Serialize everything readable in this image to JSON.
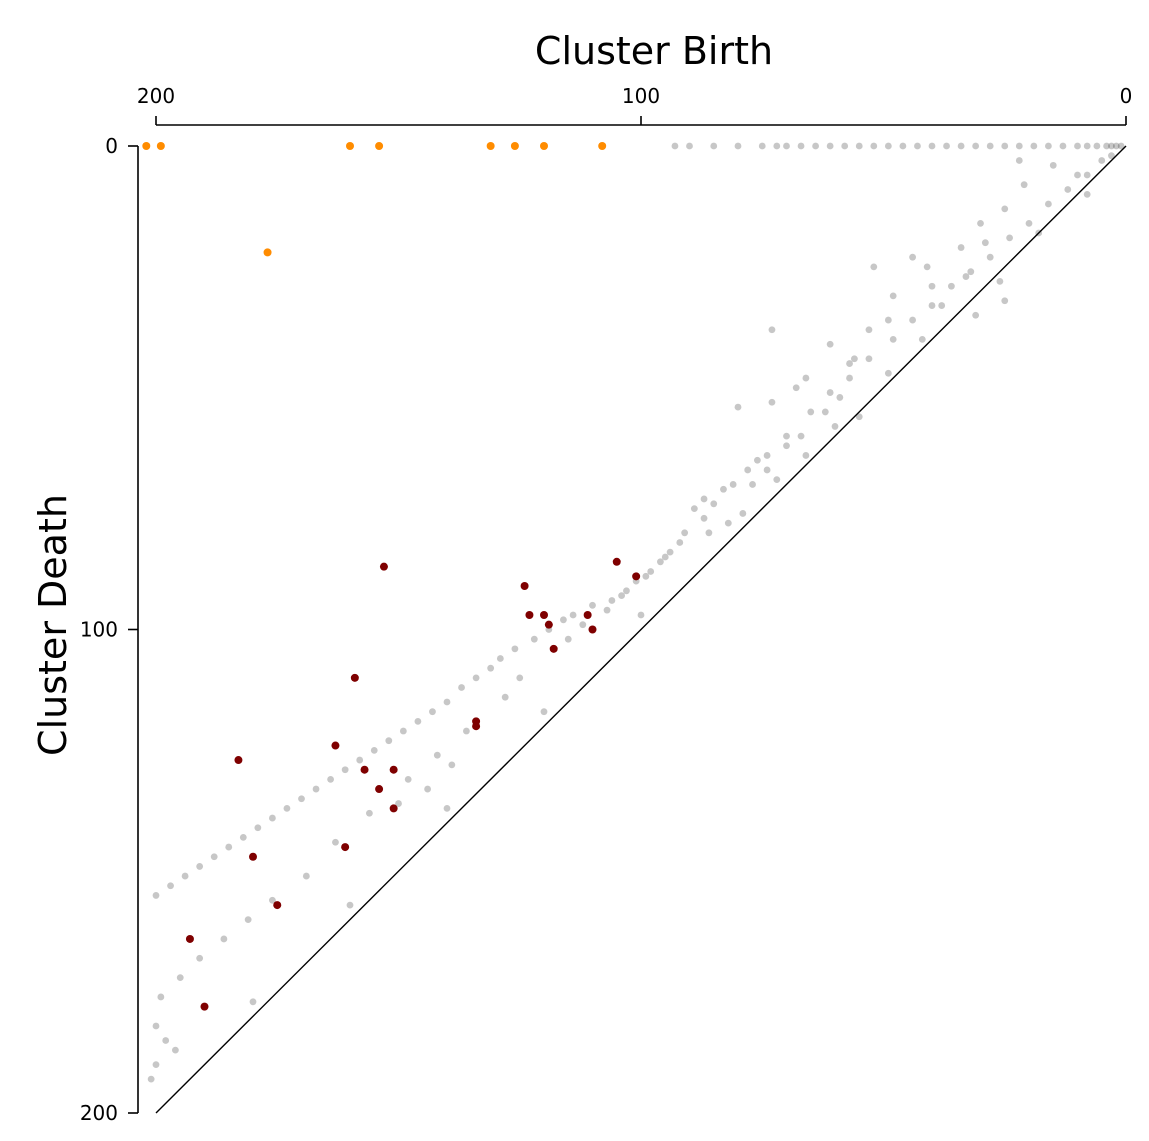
{
  "chart_data": {
    "type": "scatter",
    "title": "",
    "xlabel": "Cluster Birth",
    "ylabel": "Cluster Death",
    "x_axis_position": "top",
    "x_reversed": true,
    "y_reversed": true,
    "xlim": [
      0,
      200
    ],
    "ylim": [
      0,
      200
    ],
    "xticks": [
      "200",
      "100",
      "0"
    ],
    "yticks": [
      "0",
      "100",
      "200"
    ],
    "grid": false,
    "legend": "none",
    "colors": {
      "infinite": "#ff8c00",
      "significant": "#7f0000",
      "noise": "#000000"
    },
    "series": [
      {
        "kind": "infinite",
        "points": [
          [
            202,
            0
          ],
          [
            199,
            0
          ],
          [
            160,
            0
          ],
          [
            154,
            0
          ],
          [
            131,
            0
          ],
          [
            126,
            0
          ],
          [
            120,
            0
          ],
          [
            108,
            0
          ],
          [
            177,
            22
          ]
        ]
      },
      {
        "kind": "significant",
        "points": [
          [
            105,
            86
          ],
          [
            101,
            89
          ],
          [
            124,
            91
          ],
          [
            153,
            87
          ],
          [
            123,
            97
          ],
          [
            120,
            97
          ],
          [
            119,
            99
          ],
          [
            111,
            97
          ],
          [
            110,
            100
          ],
          [
            118,
            104
          ],
          [
            159,
            110
          ],
          [
            134,
            119
          ],
          [
            134,
            120
          ],
          [
            163,
            124
          ],
          [
            183,
            127
          ],
          [
            157,
            129
          ],
          [
            151,
            129
          ],
          [
            154,
            133
          ],
          [
            151,
            137
          ],
          [
            161,
            145
          ],
          [
            180,
            147
          ],
          [
            175,
            157
          ],
          [
            193,
            164
          ],
          [
            190,
            178
          ]
        ]
      }
    ],
    "noise_points": [
      [
        93,
        0
      ],
      [
        90,
        0
      ],
      [
        85,
        0
      ],
      [
        80,
        0
      ],
      [
        75,
        0
      ],
      [
        72,
        0
      ],
      [
        70,
        0
      ],
      [
        67,
        0
      ],
      [
        64,
        0
      ],
      [
        61,
        0
      ],
      [
        58,
        0
      ],
      [
        55,
        0
      ],
      [
        52,
        0
      ],
      [
        49,
        0
      ],
      [
        46,
        0
      ],
      [
        43,
        0
      ],
      [
        40,
        0
      ],
      [
        37,
        0
      ],
      [
        34,
        0
      ],
      [
        31,
        0
      ],
      [
        28,
        0
      ],
      [
        25,
        0
      ],
      [
        22,
        0
      ],
      [
        19,
        0
      ],
      [
        16,
        0
      ],
      [
        13,
        0
      ],
      [
        10,
        0
      ],
      [
        8,
        0
      ],
      [
        6,
        0
      ],
      [
        4,
        0
      ],
      [
        3,
        0
      ],
      [
        2,
        0
      ],
      [
        1,
        0
      ],
      [
        22,
        3
      ],
      [
        15,
        4
      ],
      [
        10,
        6
      ],
      [
        21,
        8
      ],
      [
        8,
        10
      ],
      [
        25,
        13
      ],
      [
        30,
        16
      ],
      [
        18,
        18
      ],
      [
        29,
        20
      ],
      [
        34,
        21
      ],
      [
        44,
        23
      ],
      [
        52,
        25
      ],
      [
        41,
        25
      ],
      [
        33,
        27
      ],
      [
        26,
        28
      ],
      [
        40,
        29
      ],
      [
        48,
        31
      ],
      [
        25,
        32
      ],
      [
        38,
        33
      ],
      [
        31,
        35
      ],
      [
        49,
        36
      ],
      [
        53,
        38
      ],
      [
        73,
        38
      ],
      [
        42,
        40
      ],
      [
        61,
        41
      ],
      [
        56,
        44
      ],
      [
        57,
        45
      ],
      [
        49,
        47
      ],
      [
        66,
        48
      ],
      [
        68,
        50
      ],
      [
        59,
        52
      ],
      [
        73,
        53
      ],
      [
        80,
        54
      ],
      [
        62,
        55
      ],
      [
        55,
        56
      ],
      [
        60,
        58
      ],
      [
        67,
        60
      ],
      [
        70,
        62
      ],
      [
        66,
        64
      ],
      [
        76,
        65
      ],
      [
        74,
        67
      ],
      [
        72,
        69
      ],
      [
        77,
        70
      ],
      [
        83,
        71
      ],
      [
        87,
        73
      ],
      [
        89,
        75
      ],
      [
        87,
        77
      ],
      [
        79,
        76
      ],
      [
        86,
        80
      ],
      [
        82,
        78
      ],
      [
        92,
        82
      ],
      [
        94,
        84
      ],
      [
        96,
        86
      ],
      [
        98,
        88
      ],
      [
        101,
        90
      ],
      [
        103,
        92
      ],
      [
        106,
        94
      ],
      [
        110,
        95
      ],
      [
        114,
        97
      ],
      [
        116,
        98
      ],
      [
        119,
        100
      ],
      [
        122,
        102
      ],
      [
        126,
        104
      ],
      [
        129,
        106
      ],
      [
        131,
        108
      ],
      [
        134,
        110
      ],
      [
        137,
        112
      ],
      [
        140,
        115
      ],
      [
        143,
        117
      ],
      [
        146,
        119
      ],
      [
        149,
        121
      ],
      [
        152,
        123
      ],
      [
        155,
        125
      ],
      [
        158,
        127
      ],
      [
        161,
        129
      ],
      [
        164,
        131
      ],
      [
        167,
        133
      ],
      [
        170,
        135
      ],
      [
        173,
        137
      ],
      [
        176,
        139
      ],
      [
        179,
        141
      ],
      [
        182,
        143
      ],
      [
        185,
        145
      ],
      [
        188,
        147
      ],
      [
        191,
        149
      ],
      [
        194,
        151
      ],
      [
        197,
        153
      ],
      [
        200,
        155
      ],
      [
        142,
        126
      ],
      [
        148,
        131
      ],
      [
        156,
        138
      ],
      [
        163,
        144
      ],
      [
        169,
        151
      ],
      [
        176,
        156
      ],
      [
        181,
        160
      ],
      [
        186,
        164
      ],
      [
        191,
        168
      ],
      [
        195,
        172
      ],
      [
        199,
        176
      ],
      [
        200,
        182
      ],
      [
        198,
        185
      ],
      [
        196,
        187
      ],
      [
        200,
        190
      ],
      [
        201,
        193
      ],
      [
        144,
        133
      ],
      [
        150,
        136
      ],
      [
        139,
        128
      ],
      [
        136,
        121
      ],
      [
        128,
        114
      ],
      [
        125,
        110
      ],
      [
        115,
        102
      ],
      [
        112,
        99
      ],
      [
        107,
        96
      ],
      [
        104,
        93
      ],
      [
        99,
        89
      ],
      [
        95,
        85
      ],
      [
        91,
        80
      ],
      [
        85,
        74
      ],
      [
        81,
        70
      ],
      [
        78,
        67
      ],
      [
        74,
        64
      ],
      [
        70,
        60
      ],
      [
        65,
        55
      ],
      [
        61,
        51
      ],
      [
        57,
        48
      ],
      [
        53,
        44
      ],
      [
        48,
        40
      ],
      [
        44,
        36
      ],
      [
        40,
        33
      ],
      [
        36,
        29
      ],
      [
        32,
        26
      ],
      [
        28,
        23
      ],
      [
        24,
        19
      ],
      [
        20,
        16
      ],
      [
        16,
        12
      ],
      [
        12,
        9
      ],
      [
        8,
        6
      ],
      [
        5,
        3
      ],
      [
        3,
        2
      ],
      [
        100,
        97
      ],
      [
        120,
        117
      ],
      [
        140,
        137
      ],
      [
        160,
        157
      ],
      [
        180,
        177
      ]
    ]
  }
}
